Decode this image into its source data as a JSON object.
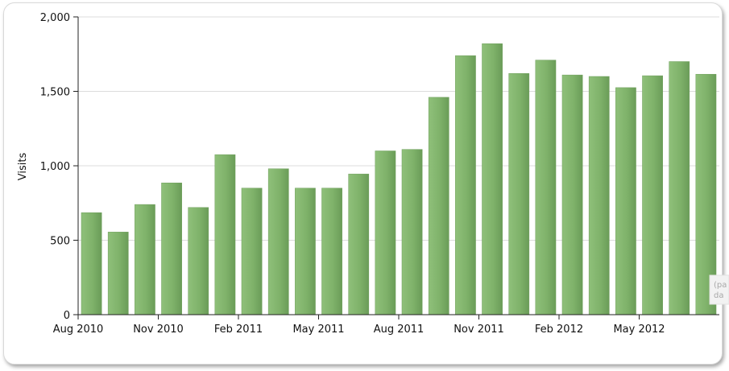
{
  "chart_data": {
    "type": "bar",
    "ylabel": "Visits",
    "ylim": [
      0,
      2000
    ],
    "yticks": [
      "0",
      "500",
      "1,000",
      "1,500",
      "2,000"
    ],
    "ytick_values": [
      0,
      500,
      1000,
      1500,
      2000
    ],
    "xtick_labels": [
      "Aug 2010",
      "Nov 2010",
      "Feb 2011",
      "May 2011",
      "Aug 2011",
      "Nov 2011",
      "Feb 2012",
      "May 2012"
    ],
    "xtick_index": [
      0,
      3,
      6,
      9,
      12,
      15,
      18,
      21
    ],
    "categories": [
      "Aug 2010",
      "Sep 2010",
      "Oct 2010",
      "Nov 2010",
      "Dec 2010",
      "Jan 2011",
      "Feb 2011",
      "Mar 2011",
      "Apr 2011",
      "May 2011",
      "Jun 2011",
      "Jul 2011",
      "Aug 2011",
      "Sep 2011",
      "Oct 2011",
      "Nov 2011",
      "Dec 2011",
      "Jan 2012",
      "Feb 2012",
      "Mar 2012",
      "Apr 2012",
      "May 2012",
      "Jun 2012",
      "Jul 2012"
    ],
    "values": [
      685,
      555,
      740,
      885,
      720,
      1075,
      850,
      980,
      850,
      850,
      945,
      1100,
      1110,
      1460,
      1740,
      1820,
      1620,
      1710,
      1610,
      1600,
      1525,
      1605,
      1700,
      1615
    ],
    "grid": true,
    "legend": "none",
    "bar_color": "#7fb26a"
  },
  "note": {
    "line1": "(pa",
    "line2": "da"
  }
}
